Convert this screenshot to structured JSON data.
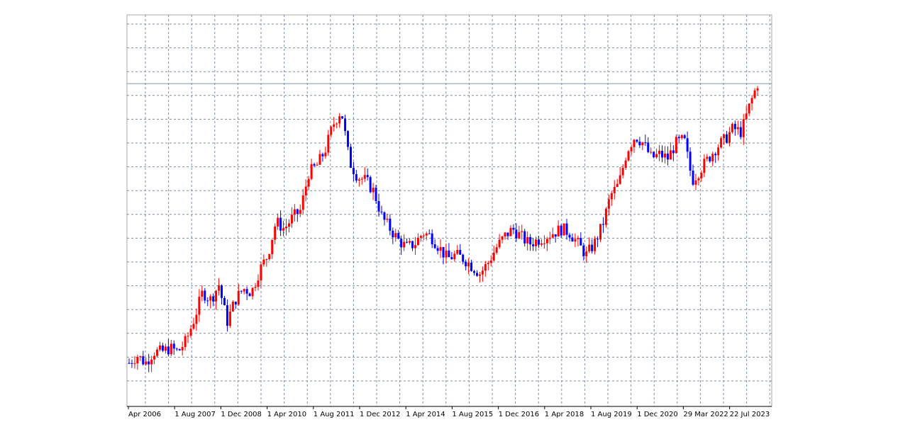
{
  "chart_data": {
    "type": "candlestick",
    "title": "",
    "xlabel": "",
    "ylabel": "",
    "grid": true,
    "legend": "none",
    "colors": {
      "up": "#ff0000",
      "down": "#0000ff",
      "grid": "#7a8da8",
      "current_line": "#7a96b8",
      "frame": "#a8a8a8"
    },
    "x_tick_labels": [
      "Apr 2006",
      "1 Aug 2007",
      "1 Dec 2008",
      "1 Apr 2010",
      "1 Aug 2011",
      "1 Dec 2012",
      "1 Apr 2014",
      "1 Aug 2015",
      "1 Dec 2016",
      "1 Apr 2018",
      "1 Aug 2019",
      "1 Dec 2020",
      "29 Mar 2022",
      "22 Jul 2023"
    ],
    "current_level": 0.84,
    "ylim": [
      0,
      1
    ],
    "path": [
      [
        0,
        0.09
      ],
      [
        1,
        0.11
      ],
      [
        2,
        0.09
      ],
      [
        3,
        0.12
      ],
      [
        4,
        0.12
      ],
      [
        5,
        0.13
      ],
      [
        6,
        0.12
      ],
      [
        7,
        0.15
      ],
      [
        8,
        0.21
      ],
      [
        9,
        0.28
      ],
      [
        10,
        0.26
      ],
      [
        11,
        0.3
      ],
      [
        12,
        0.2
      ],
      [
        13,
        0.26
      ],
      [
        14,
        0.29
      ],
      [
        15,
        0.28
      ],
      [
        16,
        0.34
      ],
      [
        17,
        0.38
      ],
      [
        18,
        0.47
      ],
      [
        19,
        0.45
      ],
      [
        20,
        0.48
      ],
      [
        21,
        0.5
      ],
      [
        22,
        0.6
      ],
      [
        23,
        0.62
      ],
      [
        24,
        0.66
      ],
      [
        25,
        0.73
      ],
      [
        26,
        0.77
      ],
      [
        27,
        0.63
      ],
      [
        28,
        0.59
      ],
      [
        29,
        0.58
      ],
      [
        30,
        0.55
      ],
      [
        31,
        0.48
      ],
      [
        32,
        0.45
      ],
      [
        33,
        0.42
      ],
      [
        34,
        0.4
      ],
      [
        35,
        0.41
      ],
      [
        36,
        0.44
      ],
      [
        37,
        0.43
      ],
      [
        38,
        0.4
      ],
      [
        39,
        0.37
      ],
      [
        40,
        0.38
      ],
      [
        41,
        0.37
      ],
      [
        42,
        0.35
      ],
      [
        43,
        0.33
      ],
      [
        44,
        0.36
      ],
      [
        45,
        0.4
      ],
      [
        46,
        0.43
      ],
      [
        47,
        0.45
      ],
      [
        48,
        0.43
      ],
      [
        49,
        0.41
      ],
      [
        50,
        0.42
      ],
      [
        51,
        0.43
      ],
      [
        52,
        0.44
      ],
      [
        53,
        0.45
      ],
      [
        54,
        0.44
      ],
      [
        55,
        0.41
      ],
      [
        56,
        0.38
      ],
      [
        57,
        0.41
      ],
      [
        58,
        0.46
      ],
      [
        59,
        0.54
      ],
      [
        60,
        0.57
      ],
      [
        61,
        0.66
      ],
      [
        62,
        0.7
      ],
      [
        63,
        0.68
      ],
      [
        64,
        0.64
      ],
      [
        65,
        0.65
      ],
      [
        66,
        0.64
      ],
      [
        67,
        0.68
      ],
      [
        68,
        0.69
      ],
      [
        69,
        0.58
      ],
      [
        70,
        0.61
      ],
      [
        71,
        0.64
      ],
      [
        72,
        0.67
      ],
      [
        73,
        0.69
      ],
      [
        74,
        0.72
      ],
      [
        75,
        0.71
      ],
      [
        76,
        0.78
      ],
      [
        77,
        0.84
      ]
    ]
  }
}
